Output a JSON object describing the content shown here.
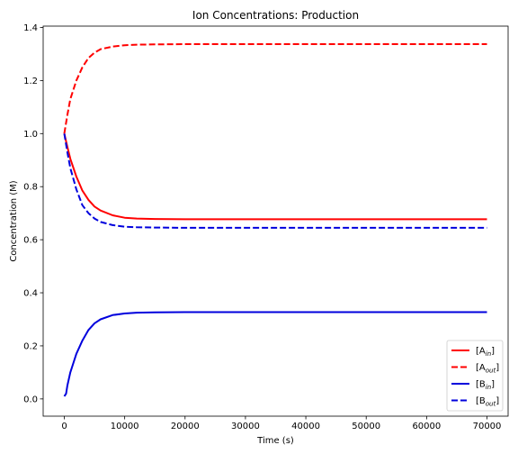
{
  "chart_data": {
    "type": "line",
    "title": "Ion Concentrations: Production",
    "xlabel": "Time (s)",
    "ylabel": "Concentration (M)",
    "xlim": [
      -3500,
      73500
    ],
    "ylim": [
      -0.065,
      1.405
    ],
    "xticks": [
      0,
      10000,
      20000,
      30000,
      40000,
      50000,
      60000,
      70000
    ],
    "yticks": [
      0.0,
      0.2,
      0.4,
      0.6,
      0.8,
      1.0,
      1.2,
      1.4
    ],
    "xtick_labels": [
      "0",
      "10000",
      "20000",
      "30000",
      "40000",
      "50000",
      "60000",
      "70000"
    ],
    "ytick_labels": [
      "0.0",
      "0.2",
      "0.4",
      "0.6",
      "0.8",
      "1.0",
      "1.2",
      "1.4"
    ],
    "grid": false,
    "legend_position": "bottom-right",
    "series": [
      {
        "name": "[A_in]",
        "legend_main": "[A",
        "legend_sub": "in",
        "legend_end": "]",
        "color": "#ff0000",
        "dash": "solid",
        "x": [
          0,
          500,
          1000,
          2000,
          3000,
          4000,
          5000,
          6000,
          8000,
          10000,
          12000,
          15000,
          20000,
          30000,
          40000,
          50000,
          60000,
          70000
        ],
        "y": [
          1.0,
          0.95,
          0.905,
          0.838,
          0.785,
          0.75,
          0.725,
          0.71,
          0.692,
          0.683,
          0.68,
          0.678,
          0.677,
          0.677,
          0.677,
          0.677,
          0.677,
          0.677
        ]
      },
      {
        "name": "[A_out]",
        "legend_main": "[A",
        "legend_sub": "out",
        "legend_end": "]",
        "color": "#ff0000",
        "dash": "dashed",
        "x": [
          0,
          500,
          1000,
          2000,
          3000,
          4000,
          5000,
          6000,
          8000,
          10000,
          12000,
          15000,
          20000,
          30000,
          40000,
          50000,
          60000,
          70000
        ],
        "y": [
          1.0,
          1.07,
          1.13,
          1.2,
          1.25,
          1.285,
          1.305,
          1.318,
          1.328,
          1.333,
          1.335,
          1.336,
          1.337,
          1.337,
          1.337,
          1.337,
          1.337,
          1.337
        ]
      },
      {
        "name": "[B_in]",
        "legend_main": "[B",
        "legend_sub": "in",
        "legend_end": "]",
        "color": "#0000dd",
        "dash": "solid",
        "x": [
          0,
          300,
          500,
          1000,
          2000,
          3000,
          4000,
          5000,
          6000,
          8000,
          10000,
          12000,
          15000,
          20000,
          30000,
          40000,
          50000,
          60000,
          70000
        ],
        "y": [
          0.01,
          0.02,
          0.05,
          0.1,
          0.17,
          0.22,
          0.26,
          0.285,
          0.3,
          0.316,
          0.322,
          0.325,
          0.326,
          0.327,
          0.327,
          0.327,
          0.327,
          0.327,
          0.327
        ]
      },
      {
        "name": "[B_out]",
        "legend_main": "[B",
        "legend_sub": "out",
        "legend_end": "]",
        "color": "#0000dd",
        "dash": "dashed",
        "x": [
          0,
          500,
          1000,
          2000,
          3000,
          4000,
          5000,
          6000,
          8000,
          10000,
          12000,
          15000,
          20000,
          30000,
          40000,
          50000,
          60000,
          70000
        ],
        "y": [
          1.0,
          0.93,
          0.87,
          0.79,
          0.73,
          0.7,
          0.68,
          0.667,
          0.655,
          0.649,
          0.647,
          0.646,
          0.645,
          0.645,
          0.645,
          0.645,
          0.645,
          0.645
        ]
      }
    ]
  }
}
